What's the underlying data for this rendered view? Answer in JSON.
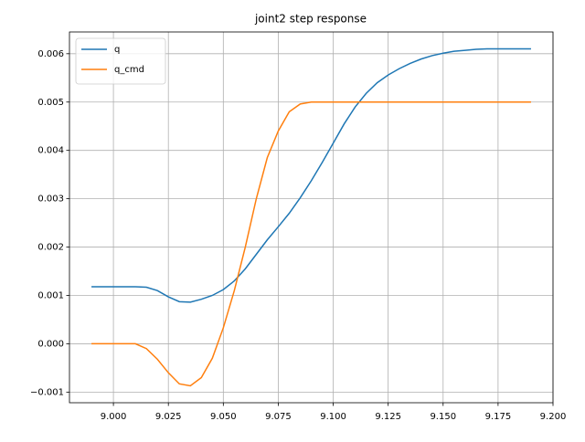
{
  "chart_data": {
    "type": "line",
    "title": "joint2 step response",
    "x": [
      8.99,
      8.995,
      9.0,
      9.005,
      9.01,
      9.015,
      9.02,
      9.025,
      9.03,
      9.035,
      9.04,
      9.045,
      9.05,
      9.055,
      9.06,
      9.065,
      9.07,
      9.075,
      9.08,
      9.085,
      9.09,
      9.095,
      9.1,
      9.105,
      9.11,
      9.115,
      9.12,
      9.125,
      9.13,
      9.135,
      9.14,
      9.145,
      9.15,
      9.155,
      9.16,
      9.165,
      9.17,
      9.175,
      9.18,
      9.185,
      9.19
    ],
    "series": [
      {
        "name": "q",
        "color": "#1f77b4",
        "values": [
          0.00118,
          0.00118,
          0.00118,
          0.00118,
          0.00118,
          0.00117,
          0.0011,
          0.00097,
          0.00087,
          0.00086,
          0.00092,
          0.001,
          0.00112,
          0.0013,
          0.00155,
          0.00185,
          0.00215,
          0.00242,
          0.0027,
          0.00302,
          0.00337,
          0.00375,
          0.00415,
          0.00455,
          0.0049,
          0.00518,
          0.0054,
          0.00556,
          0.00569,
          0.0058,
          0.00589,
          0.00596,
          0.00601,
          0.00605,
          0.00607,
          0.00609,
          0.0061,
          0.0061,
          0.0061,
          0.0061,
          0.0061
        ]
      },
      {
        "name": "q_cmd",
        "color": "#ff7f0e",
        "values": [
          0,
          0,
          0,
          0,
          0,
          -0.0001,
          -0.00032,
          -0.0006,
          -0.00083,
          -0.00087,
          -0.0007,
          -0.0003,
          0.00033,
          0.0011,
          0.002,
          0.003,
          0.00385,
          0.0044,
          0.0048,
          0.00496,
          0.005,
          0.005,
          0.005,
          0.005,
          0.005,
          0.005,
          0.005,
          0.005,
          0.005,
          0.005,
          0.005,
          0.005,
          0.005,
          0.005,
          0.005,
          0.005,
          0.005,
          0.005,
          0.005,
          0.005,
          0.005
        ]
      }
    ],
    "xlim": [
      8.98,
      9.2
    ],
    "ylim": [
      -0.00122,
      0.00645
    ],
    "xticks": [
      {
        "value": 9.0,
        "label": "9.000"
      },
      9.025,
      {
        "value": 9.05,
        "label": "9.050"
      },
      9.075,
      {
        "value": 9.1,
        "label": "9.100"
      },
      9.125,
      {
        "value": 9.15,
        "label": "9.150"
      },
      9.175,
      {
        "value": 9.2,
        "label": "9.200"
      }
    ],
    "yticks": [
      {
        "value": -0.001,
        "label": "−0.001"
      },
      {
        "value": 0,
        "label": "0.000"
      },
      0.001,
      0.002,
      0.003,
      0.004,
      0.005,
      0.006
    ],
    "grid": true,
    "legend": "upper-left"
  }
}
